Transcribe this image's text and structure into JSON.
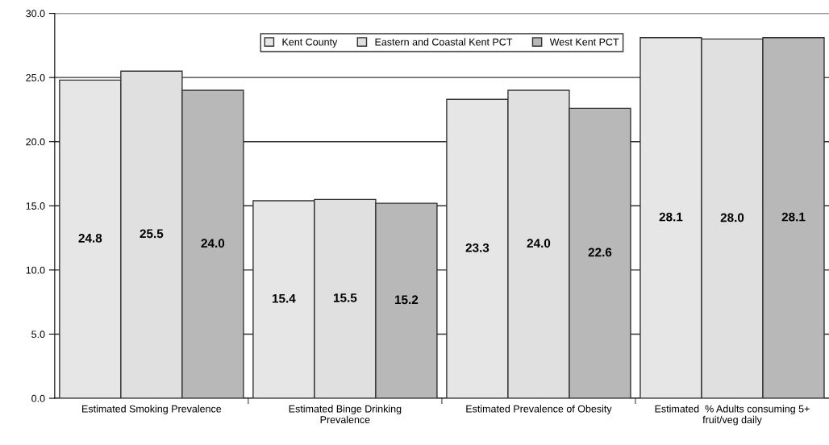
{
  "chart_data": {
    "type": "bar",
    "categories": [
      "Estimated Smoking Prevalence",
      "Estimated Binge Drinking\nPrevalence",
      "Estimated Prevalence of Obesity",
      "Estimated  % Adults consuming 5+\nfruit/veg daily"
    ],
    "series": [
      {
        "name": "Kent County",
        "color": "#e6e6e6",
        "values": [
          24.8,
          15.4,
          23.3,
          28.1
        ],
        "value_labels": [
          "24.8",
          "15.4",
          "23.3",
          "28.1"
        ]
      },
      {
        "name": "Eastern and Coastal Kent PCT",
        "color": "#e0e0e0",
        "values": [
          25.5,
          15.5,
          24.0,
          28.0
        ],
        "value_labels": [
          "25.5",
          "15.5",
          "24.0",
          "28.0"
        ]
      },
      {
        "name": "West Kent PCT",
        "color": "#b8b8b8",
        "values": [
          24.0,
          15.2,
          22.6,
          28.1
        ],
        "value_labels": [
          "24.0",
          "15.2",
          "22.6",
          "28.1"
        ]
      }
    ],
    "ylim": [
      0,
      30
    ],
    "yticks": [
      {
        "value": 0,
        "label": "0.0"
      },
      {
        "value": 5,
        "label": "5.0"
      },
      {
        "value": 10,
        "label": "10.0"
      },
      {
        "value": 15,
        "label": "15.0"
      },
      {
        "value": 20,
        "label": "20.0"
      },
      {
        "value": 25,
        "label": "25.0"
      },
      {
        "value": 30,
        "label": "30.0"
      }
    ],
    "grid": "y",
    "legend": "top"
  }
}
